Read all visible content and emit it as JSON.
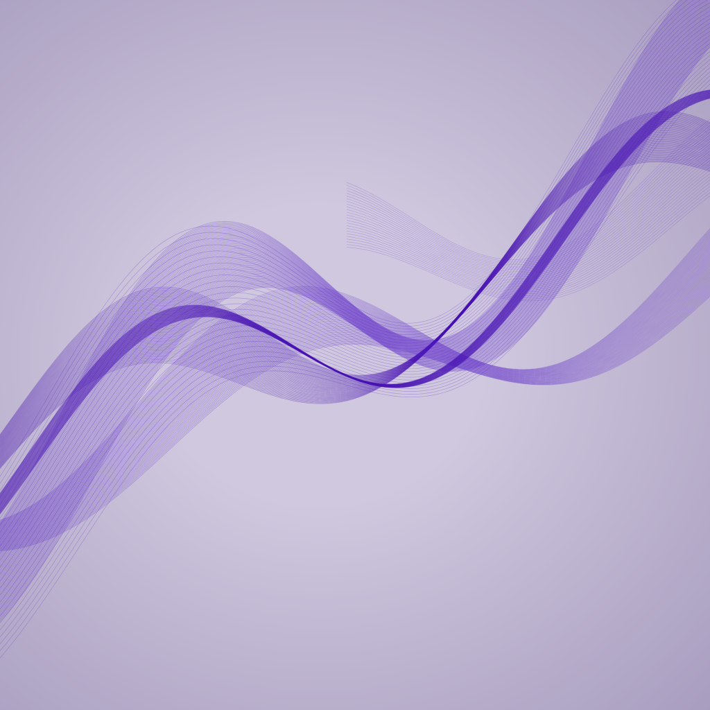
{
  "scene": {
    "subject": "abstract-flowing-wave-ribbons",
    "colors": {
      "background_center": "#cfc8de",
      "background_edge": "#a89dbf",
      "ribbon": "#5a23c8",
      "ribbon_dark": "#4a14b4",
      "line": "#6a38d0"
    }
  }
}
